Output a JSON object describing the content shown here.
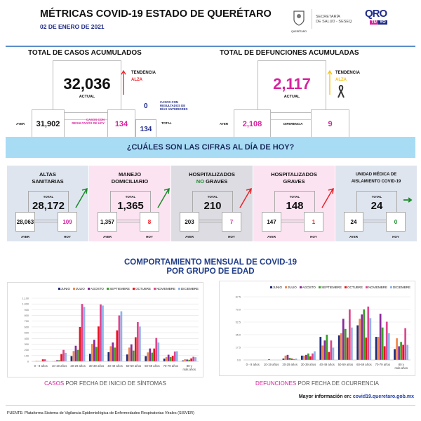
{
  "header": {
    "title": "MÉTRICAS COVID-19 ESTADO DE QUERÉTARO",
    "date": "02 DE ENERO DE 2021",
    "seal_caption": "QUERÉTARO",
    "secretaria_line1": "SECRETARÍA",
    "secretaria_line2": "DE SALUD - SESEQ",
    "logo_qro": "QRO",
    "logo_tu": "TÚ",
    "logo_yo": "YO"
  },
  "casos": {
    "title": "TOTAL DE CASOS ACUMULADOS",
    "actual": "32,036",
    "actual_label": "ACTUAL",
    "tendencia_label": "TENDENCIA",
    "tendencia_value": "ALZA",
    "ayer_label": "AYER",
    "ayer": "31,902",
    "hoy_label": "CASOS CON RESULTADOS DE HOY",
    "hoy": "134",
    "anteriores": "0",
    "anteriores_label": "CASOS CON RESULTADOS DE DÍAS ANTERIORES",
    "total": "134",
    "total_label": "TOTAL"
  },
  "defunciones": {
    "title": "TOTAL DE DEFUNCIONES ACUMULADAS",
    "actual": "2,117",
    "actual_label": "ACTUAL",
    "tendencia_label": "TENDENCIA",
    "tendencia_value": "ALZA",
    "ayer_label": "AYER",
    "ayer": "2,108",
    "diferencia_label": "DIFERENCIA",
    "diferencia": "9"
  },
  "banner": "¿CUÁLES SON LAS CIFRAS AL DÍA DE HOY?",
  "cards": [
    {
      "title1": "ALTAS",
      "title2": "SANITARIAS",
      "total_label": "TOTAL",
      "total": "28,172",
      "ayer": "28,063",
      "hoy": "109",
      "ayer_label": "AYER",
      "hoy_label": "HOY",
      "trend": "up",
      "bg": "#dfe5ef",
      "hoy_color": "#d6249f",
      "arrow_color": "#1a8a2a"
    },
    {
      "title1": "MANEJO",
      "title2": "DOMICILIARIO",
      "total_label": "TOTAL",
      "total": "1,365",
      "ayer": "1,357",
      "hoy": "8",
      "ayer_label": "AYER",
      "hoy_label": "HOY",
      "trend": "up",
      "bg": "#fce3f1",
      "hoy_color": "#e8232a",
      "arrow_color": "#1a8a2a"
    },
    {
      "title1": "HOSPITALIZADOS",
      "title2a": "NO",
      "title2": " GRAVES",
      "total_label": "TOTAL",
      "total": "210",
      "ayer": "203",
      "hoy": "7",
      "ayer_label": "AYER",
      "hoy_label": "HOY",
      "trend": "up",
      "bg": "#dcdce2",
      "hoy_color": "#d6249f",
      "arrow_color": "#e8232a"
    },
    {
      "title1": "HOSPITALIZADOS",
      "title2": "GRAVES",
      "total_label": "TOTAL",
      "total": "148",
      "ayer": "147",
      "hoy": "1",
      "ayer_label": "AYER",
      "hoy_label": "HOY",
      "trend": "up",
      "bg": "#fce3f1",
      "hoy_color": "#e8232a",
      "arrow_color": "#e8232a"
    },
    {
      "title1": "UNIDAD MÉDICA DE",
      "title2": "AISLAMIENTO COVID-19",
      "total_label": "TOTAL",
      "total": "24",
      "ayer": "24",
      "hoy": "0",
      "ayer_label": "AYER",
      "hoy_label": "HOY",
      "trend": "flat",
      "bg": "#dfe5ef",
      "hoy_color": "#1a8a2a",
      "arrow_color": "#1a8a2a"
    }
  ],
  "section_title1": "COMPORTAMIENTO MENSUAL DE COVID-19",
  "section_title2": "POR GRUPO DE EDAD",
  "chart_data": [
    {
      "type": "bar",
      "categories": [
        "0 - 9 años",
        "10-19 años",
        "20-29 años",
        "30-39 años",
        "40-49 años",
        "50-59 años",
        "60-69 años",
        "70-79 años",
        "80 y más años"
      ],
      "ylim": [
        0,
        1100
      ],
      "yticks": [
        "0",
        "100",
        "200",
        "300",
        "400",
        "500",
        "600",
        "700",
        "800",
        "900",
        "1,000",
        "1,100"
      ],
      "grid": true,
      "legend": "top-right",
      "caption_a": "CASOS",
      "caption_b": " POR FECHA DE INICIO DE SÍNTOMAS",
      "series": [
        {
          "name": "JUNIO",
          "color": "#1f2a7a",
          "values": [
            0,
            2,
            92,
            132,
            160,
            120,
            92,
            48,
            16
          ]
        },
        {
          "name": "JULIO",
          "color": "#f0884a",
          "values": [
            10,
            10,
            180,
            304,
            264,
            240,
            156,
            76,
            36
          ]
        },
        {
          "name": "AGOSTO",
          "color": "#8a2a9a",
          "values": [
            5,
            20,
            272,
            376,
            328,
            296,
            224,
            116,
            32
          ]
        },
        {
          "name": "SEPTIEMBRE",
          "color": "#3aa02a",
          "values": [
            5,
            20,
            200,
            252,
            240,
            188,
            152,
            76,
            28
          ]
        },
        {
          "name": "OCTUBRE",
          "color": "#e8141e",
          "values": [
            35,
            128,
            600,
            608,
            540,
            420,
            224,
            96,
            52
          ]
        },
        {
          "name": "NOVIEMBRE",
          "color": "#e0458f",
          "values": [
            35,
            200,
            1000,
            992,
            800,
            684,
            408,
            172,
            80
          ]
        },
        {
          "name": "DICIEMBRE",
          "color": "#8fb4ea",
          "values": [
            10,
            148,
            948,
            972,
            872,
            608,
            328,
            176,
            72
          ]
        }
      ]
    },
    {
      "type": "bar",
      "categories": [
        "0 - 9 años",
        "10-19 años",
        "20-29 años",
        "30-39 años",
        "40-49 años",
        "50-59 años",
        "60-69 años",
        "70-79 años",
        "80 y más años"
      ],
      "ylim": [
        0,
        87.5
      ],
      "yticks": [
        "0.0",
        "17.5",
        "35.0",
        "52.5",
        "70.0",
        "87.5"
      ],
      "grid": true,
      "legend": "top-right",
      "caption_a": "DEFUNCIONES",
      "caption_b": " POR FECHA DE OCURRENCIA",
      "series": [
        {
          "name": "JUNIO",
          "color": "#1f2a7a",
          "values": [
            0,
            0,
            2,
            6,
            32,
            34,
            48,
            32,
            15
          ]
        },
        {
          "name": "JULIO",
          "color": "#f0884a",
          "values": [
            0,
            0,
            6,
            6,
            20,
            37,
            57,
            32,
            30
          ]
        },
        {
          "name": "AGOSTO",
          "color": "#8a2a9a",
          "values": [
            0,
            1,
            7,
            7,
            27,
            57,
            63,
            64,
            19
          ]
        },
        {
          "name": "SEPTIEMBRE",
          "color": "#3aa02a",
          "values": [
            0,
            0,
            3,
            9,
            35,
            43,
            70,
            45,
            25
          ]
        },
        {
          "name": "OCTUBRE",
          "color": "#e8141e",
          "values": [
            0,
            0,
            2,
            5,
            11,
            31,
            31,
            19,
            21
          ]
        },
        {
          "name": "NOVIEMBRE",
          "color": "#e0458f",
          "values": [
            0,
            0,
            1,
            9,
            27,
            70,
            74,
            53,
            44
          ]
        },
        {
          "name": "DICIEMBRE",
          "color": "#8fb4ea",
          "values": [
            0,
            0,
            2,
            12,
            17,
            45,
            58,
            37,
            21
          ]
        }
      ]
    }
  ],
  "footer": {
    "mas_info": "Mayor información en: ",
    "url": "covid19.queretaro.gob.mx",
    "fuente": "FUENTE: Plataforma Sistema  de Vigilancia Epidemiológica de Enfermedades Respiratorias Virales (SISVER)"
  },
  "colors": {
    "navy": "#1f2a8a",
    "magenta": "#d6249f",
    "red": "#e8232a",
    "yellow": "#f2c21a",
    "banner": "#a8dcf5",
    "rule": "#5b8fc9"
  }
}
